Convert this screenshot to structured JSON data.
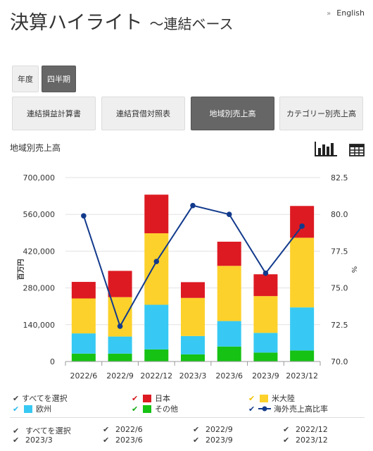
{
  "header": {
    "title": "決算ハイライト",
    "subtitle": "～連結ベース",
    "lang_arrow": "»",
    "lang_link": "English"
  },
  "period_tabs": [
    {
      "label": "年度",
      "active": false
    },
    {
      "label": "四半期",
      "active": true
    }
  ],
  "statement_tabs": [
    {
      "label": "連結損益計算書",
      "active": false
    },
    {
      "label": "連結貸借対照表",
      "active": false
    },
    {
      "label": "地域別売上高",
      "active": true
    },
    {
      "label": "カテゴリー別売上高",
      "active": false
    }
  ],
  "section_label": "地域別売上高",
  "view_icons": [
    "bar-chart-icon",
    "table-icon"
  ],
  "colors": {
    "japan": "#dd1a22",
    "americas": "#fdd12b",
    "europe": "#37c9f3",
    "other": "#16c214",
    "line": "#123a8c",
    "grid": "#e2e2e2",
    "check_all": "#444444",
    "check_japan": "#d7141c",
    "check_americas": "#f2c200",
    "check_europe": "#2db8ee",
    "check_other": "#0fab0f",
    "check_line": "#123a8c"
  },
  "chart_data": {
    "type": "bar",
    "stacked": true,
    "categories": [
      "2022/6",
      "2022/9",
      "2022/12",
      "2023/3",
      "2023/6",
      "2023/9",
      "2023/12"
    ],
    "series": [
      {
        "name": "その他",
        "color_key": "other",
        "values": [
          30000,
          30000,
          46000,
          27000,
          57000,
          34000,
          42000
        ]
      },
      {
        "name": "欧州",
        "color_key": "europe",
        "values": [
          77000,
          65000,
          170000,
          70000,
          97000,
          75000,
          164000
        ]
      },
      {
        "name": "米大陸",
        "color_key": "americas",
        "values": [
          133000,
          150000,
          272000,
          145000,
          210000,
          140000,
          265000
        ]
      },
      {
        "name": "日本",
        "color_key": "japan",
        "values": [
          63000,
          100000,
          147000,
          60000,
          92000,
          83000,
          121000
        ]
      }
    ],
    "line_series": {
      "name": "海外売上高比率",
      "color_key": "line",
      "values": [
        79.9,
        72.4,
        76.8,
        80.6,
        80.0,
        76.0,
        79.2
      ]
    },
    "ylabel": "百万円",
    "y2label": "%",
    "ylim": [
      0,
      700000
    ],
    "y_ticks": [
      "0",
      "140,000",
      "280,000",
      "420,000",
      "560,000",
      "700,000"
    ],
    "y2lim": [
      70.0,
      82.5
    ],
    "y2_ticks": [
      "70.0",
      "72.5",
      "75.0",
      "77.5",
      "80.0",
      "82.5"
    ],
    "grid": true
  },
  "legend": [
    {
      "label": "すべてを選択",
      "swatch": "none",
      "check_color_key": "check_all"
    },
    {
      "label": "日本",
      "swatch": "japan",
      "check_color_key": "check_japan"
    },
    {
      "label": "米大陸",
      "swatch": "americas",
      "check_color_key": "check_americas"
    },
    {
      "label": "欧州",
      "swatch": "europe",
      "check_color_key": "check_europe"
    },
    {
      "label": "その他",
      "swatch": "other",
      "check_color_key": "check_other"
    },
    {
      "label": "海外売上高比率",
      "swatch": "line",
      "check_color_key": "check_line"
    }
  ],
  "period_filters": [
    "すべてを選択",
    "2022/6",
    "2022/9",
    "2022/12",
    "2023/3",
    "2023/6",
    "2023/9",
    "2023/12"
  ]
}
